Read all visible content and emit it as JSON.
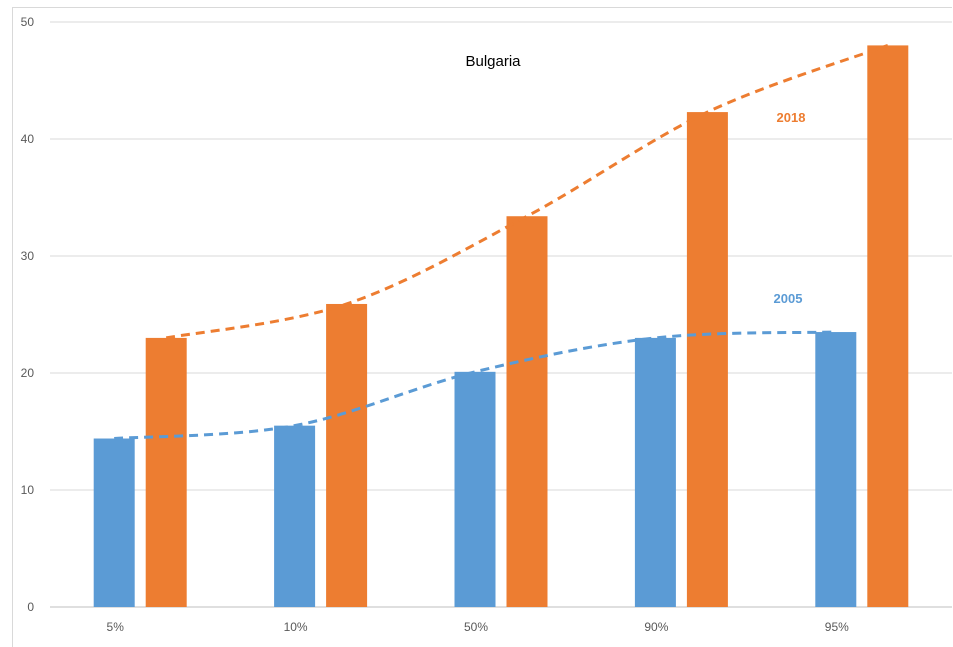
{
  "colors": {
    "series_2005": "#5b9bd5",
    "series_2018": "#ed7d31",
    "grid": "#d9d9d9",
    "axis": "#bfbfbf"
  },
  "chart_data": {
    "type": "bar",
    "title": "Bulgaria",
    "xlabel": "",
    "ylabel": "",
    "ylim": [
      0,
      50
    ],
    "yticks": [
      0,
      10,
      20,
      30,
      40,
      50
    ],
    "grid": true,
    "categories": [
      "5%",
      "10%",
      "50%",
      "90%",
      "95%"
    ],
    "series": [
      {
        "name": "2005",
        "values": [
          14.4,
          15.5,
          20.1,
          23.0,
          23.5
        ],
        "color": "#5b9bd5",
        "trendline": "dashed polynomial"
      },
      {
        "name": "2018",
        "values": [
          23.0,
          25.9,
          33.4,
          42.3,
          48.0
        ],
        "color": "#ed7d31",
        "trendline": "dashed polynomial"
      }
    ]
  }
}
